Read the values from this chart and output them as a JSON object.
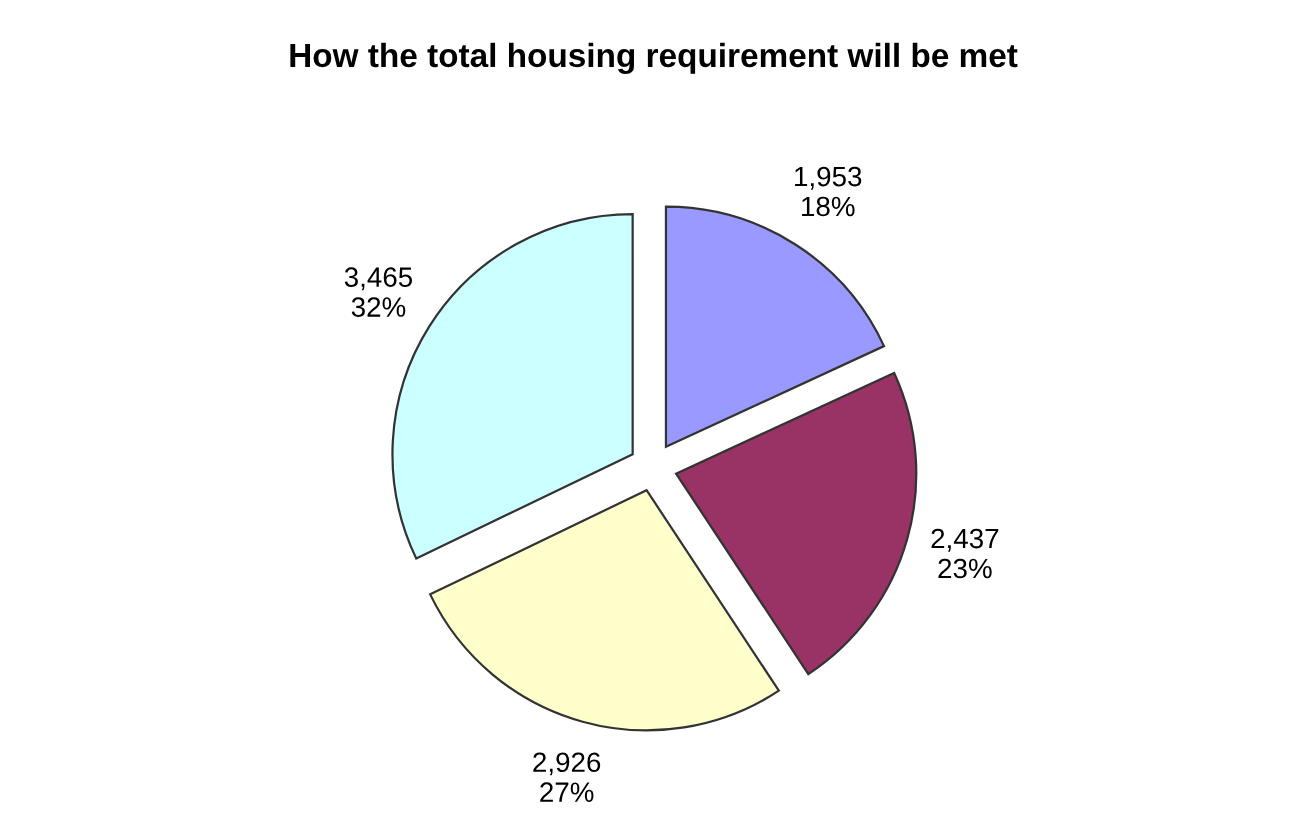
{
  "chart_data": {
    "type": "pie",
    "title": "How the total housing requirement will be met",
    "categories": [
      null,
      null,
      null,
      null
    ],
    "values": [
      1953,
      2437,
      2926,
      3465
    ],
    "value_labels": [
      "1,953\n18%",
      "2,437\n23%",
      "2,926\n27%",
      "3,465\n32%"
    ],
    "colors": [
      "#9999ff",
      "#993366",
      "#ffffcc",
      "#ccffff"
    ]
  }
}
